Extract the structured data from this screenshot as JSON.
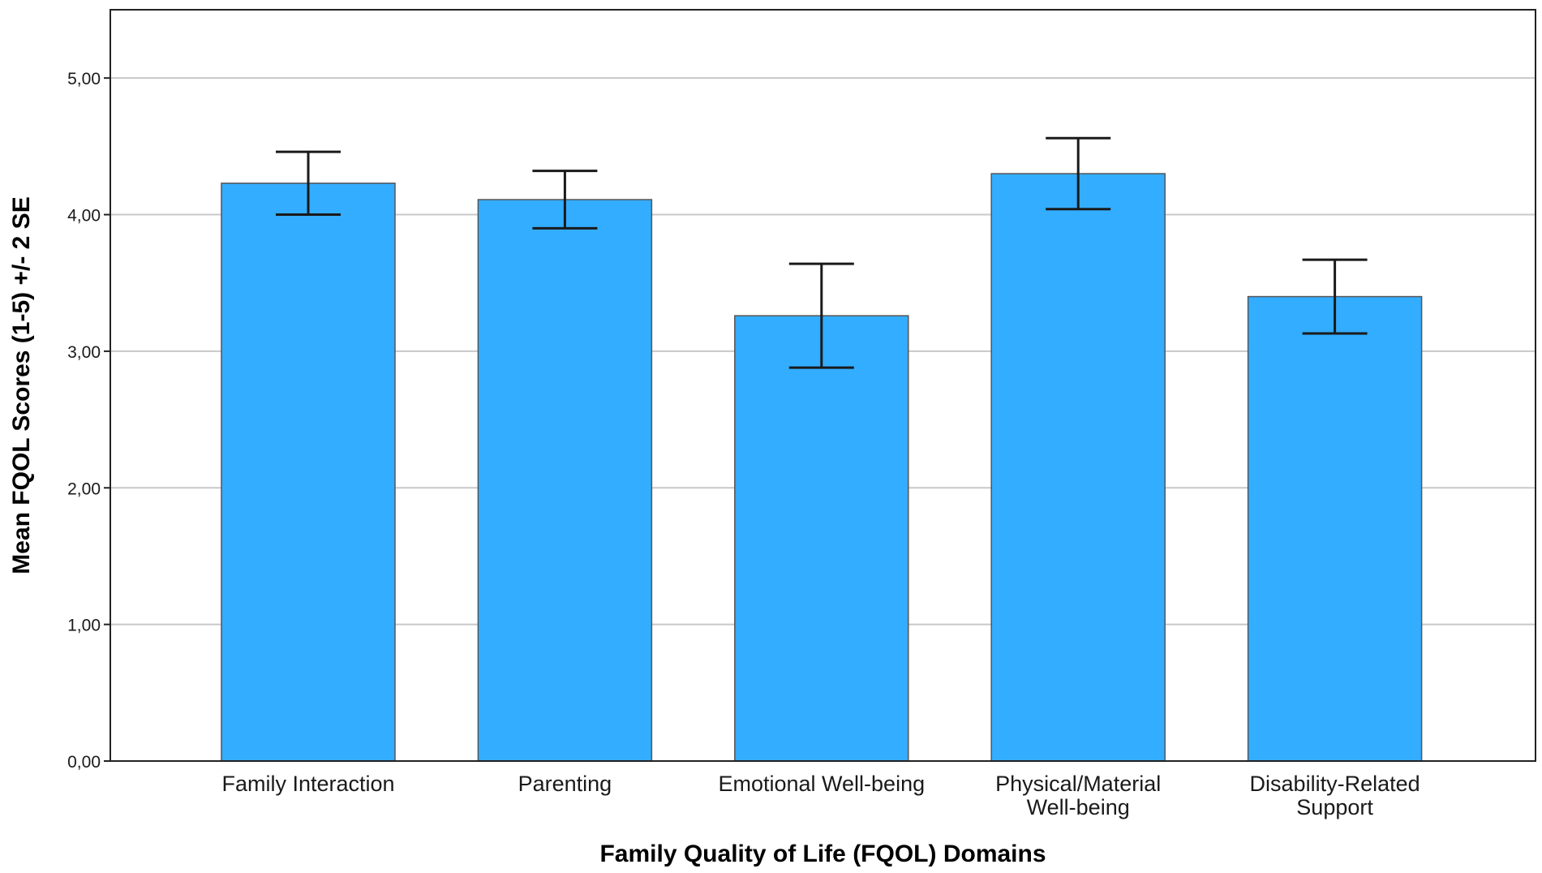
{
  "chart_data": {
    "type": "bar",
    "title": "",
    "xlabel": "Family Quality of Life (FQOL) Domains",
    "ylabel": "Mean FQOL Scores (1-5) +/- 2 SE",
    "ylim": [
      0,
      5.5
    ],
    "grid": true,
    "yticks": [
      0,
      1,
      2,
      3,
      4,
      5
    ],
    "ytick_labels": [
      "0,00",
      "1,00",
      "2,00",
      "3,00",
      "4,00",
      "5,00"
    ],
    "categories": [
      [
        "Family Interaction"
      ],
      [
        "Parenting"
      ],
      [
        "Emotional Well-being"
      ],
      [
        "Physical/Material",
        "Well-being"
      ],
      [
        "Disability-Related",
        "Support"
      ]
    ],
    "values": [
      4.23,
      4.11,
      3.26,
      4.3,
      3.4
    ],
    "error_low": [
      4.0,
      3.9,
      2.88,
      4.04,
      3.13
    ],
    "error_high": [
      4.46,
      4.32,
      3.64,
      4.56,
      3.67
    ],
    "bar_color": "#33adff",
    "bar_edge_color": "#555555",
    "grid_color": "#c8c8c8"
  }
}
